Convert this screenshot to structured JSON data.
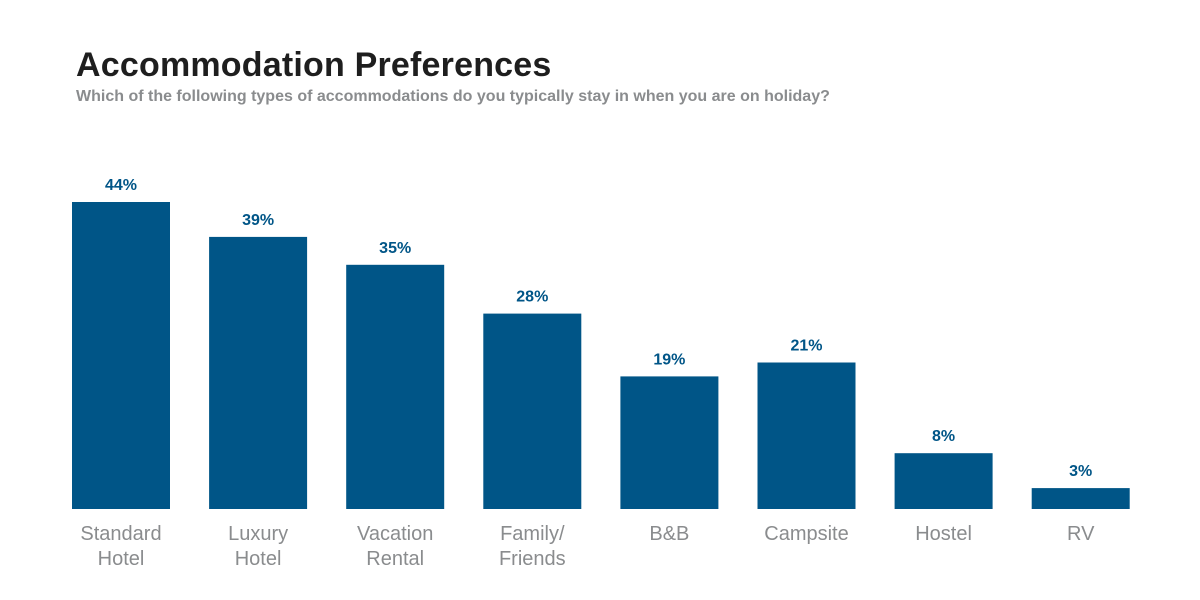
{
  "chart_data": {
    "type": "bar",
    "title": "Accommodation Preferences",
    "subtitle": "Which of the following types of accommodations do you typically stay in when you are on holiday?",
    "categories": [
      [
        "Standard",
        "Hotel"
      ],
      [
        "Luxury",
        "Hotel"
      ],
      [
        "Vacation",
        "Rental"
      ],
      [
        "Family/",
        "Friends"
      ],
      [
        "B&B"
      ],
      [
        "Campsite"
      ],
      [
        "Hostel"
      ],
      [
        "RV"
      ]
    ],
    "values": [
      44,
      39,
      35,
      28,
      19,
      21,
      8,
      3
    ],
    "value_labels": [
      "44%",
      "39%",
      "35%",
      "28%",
      "19%",
      "21%",
      "8%",
      "3%"
    ],
    "ylim": [
      0,
      44
    ],
    "grid": false,
    "colors": {
      "bar": "#005587",
      "value_label": "#005587",
      "category_label": "#8a8c8e",
      "title": "#1e1e1e",
      "subtitle": "#8a8c8e"
    }
  }
}
